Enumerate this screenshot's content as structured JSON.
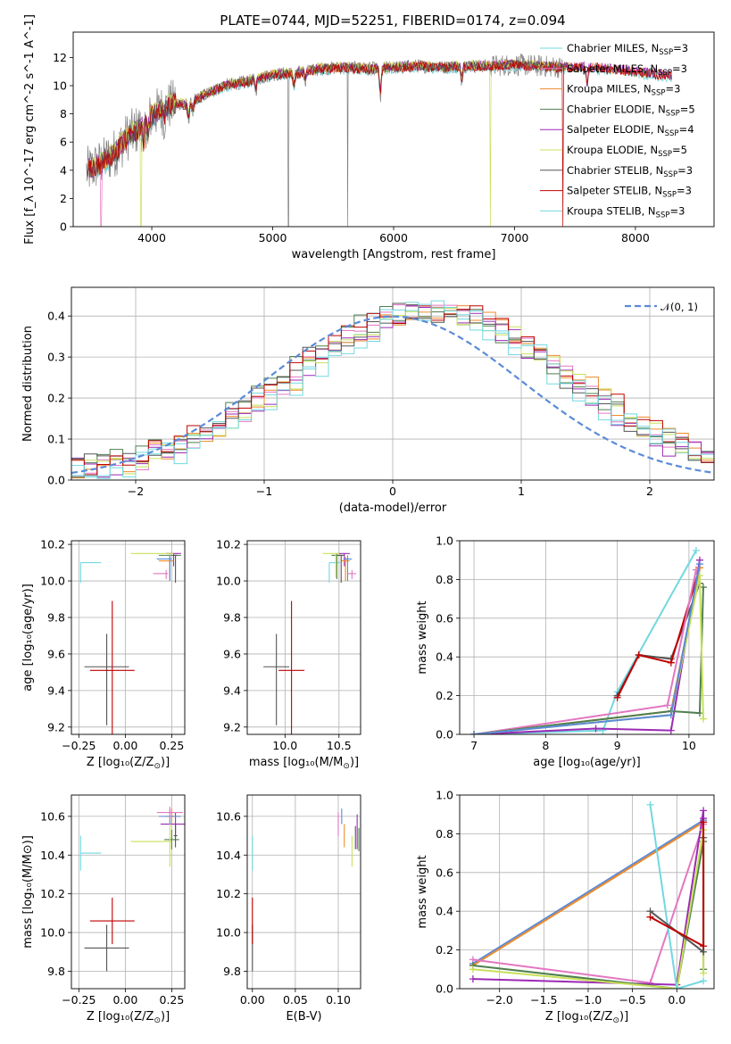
{
  "title": "PLATE=0744, MJD=52251, FIBERID=0174, z=0.094",
  "colors": {
    "gray": "#7f7f7f",
    "purple": "#9b2ab5",
    "orange": "#ee8a2a",
    "green": "#4f7f4f",
    "pink": "#e377c2",
    "yellowgreen": "#c8e05a",
    "darkgray": "#555555",
    "red": "#c00000",
    "cyan": "#72d8e0",
    "blue": "#5b8bd8",
    "grid": "#b0b0b0"
  },
  "chart_data": [
    {
      "id": "spectrum",
      "type": "line",
      "xlabel": "wavelength [Angstrom, rest frame]",
      "ylabel": "Flux [f_λ 10^-17 erg cm^-2 s^-1 A^-1]",
      "xlim": [
        3350,
        8650
      ],
      "ylim": [
        0,
        13.8
      ],
      "xticks": [
        "4000",
        "5000",
        "6000",
        "7000",
        "8000"
      ],
      "yticks": [
        "0",
        "2",
        "4",
        "6",
        "8",
        "10",
        "12"
      ],
      "grid": false,
      "legend_position": "top-right",
      "legend": [
        {
          "base": "Chabrier MILES, N",
          "sub": "SSP",
          "tail": "=3",
          "color": "cyan"
        },
        {
          "base": "Salpeter MILES, N",
          "sub": "SSP",
          "tail": "=3",
          "color": "pink"
        },
        {
          "base": "Kroupa MILES, N",
          "sub": "SSP",
          "tail": "=3",
          "color": "orange"
        },
        {
          "base": "Chabrier ELODIE, N",
          "sub": "SSP",
          "tail": "=5",
          "color": "green"
        },
        {
          "base": "Salpeter ELODIE, N",
          "sub": "SSP",
          "tail": "=4",
          "color": "purple"
        },
        {
          "base": "Kroupa ELODIE, N",
          "sub": "SSP",
          "tail": "=5",
          "color": "yellowgreen"
        },
        {
          "base": "Chabrier STELIB, N",
          "sub": "SSP",
          "tail": "=3",
          "color": "darkgray"
        },
        {
          "base": "Salpeter STELIB, N",
          "sub": "SSP",
          "tail": "=3",
          "color": "red"
        },
        {
          "base": "Kroupa STELIB, N",
          "sub": "SSP",
          "tail": "=3",
          "color": "cyan"
        }
      ],
      "continuum_wavelength": [
        3460,
        3600,
        3700,
        3800,
        3900,
        4000,
        4100,
        4200,
        4300,
        4400,
        4500,
        4600,
        4800,
        5000,
        5200,
        5400,
        5600,
        5800,
        6000,
        6200,
        6400,
        6600,
        6800,
        7000,
        7200,
        7400,
        7600,
        7800,
        8000,
        8200,
        8400
      ],
      "continuum_flux": [
        3.9,
        4.6,
        5.3,
        6.4,
        7.0,
        7.9,
        8.4,
        8.8,
        8.6,
        9.2,
        9.6,
        10.0,
        10.3,
        10.8,
        10.9,
        11.2,
        11.3,
        11.2,
        11.3,
        11.4,
        11.3,
        11.4,
        11.4,
        11.5,
        11.4,
        11.3,
        11.3,
        11.2,
        11.0,
        10.8,
        10.6
      ]
    },
    {
      "id": "residuals",
      "type": "histogram",
      "xlabel": "(data-model)/error",
      "ylabel": "Normed distribution",
      "xlim": [
        -2.5,
        2.5
      ],
      "ylim": [
        0,
        0.47
      ],
      "xticks": [
        "−2",
        "−1",
        "0",
        "1",
        "2"
      ],
      "yticks": [
        "0.0",
        "0.1",
        "0.2",
        "0.3",
        "0.4"
      ],
      "grid": true,
      "bin_width": 0.1,
      "legend_position": "top-right",
      "legend": {
        "label": "𝒩(0, 1)",
        "color": "blue"
      },
      "gaussian": {
        "mean": 0,
        "sigma": 1
      }
    },
    {
      "id": "age-vs-z",
      "type": "scatter",
      "xlabel_base": "Z [log₁₀(Z/Z",
      "xlabel_sun": "⊙",
      "xlabel_tail": ")]",
      "ylabel": "age  [log₁₀(age/yr)]",
      "xlim": [
        -0.29,
        0.32
      ],
      "ylim": [
        9.16,
        10.22
      ],
      "xticks": [
        "−0.25",
        "0.00",
        "0.25"
      ],
      "yticks": [
        "9.2",
        "9.4",
        "9.6",
        "9.8",
        "10.0",
        "10.2"
      ],
      "grid": true,
      "points": [
        {
          "x": -0.1,
          "y": 9.53,
          "xerr": 0.12,
          "yerr_lo": 0.32,
          "yerr_hi": 0.18,
          "color": "darkgray"
        },
        {
          "x": -0.07,
          "y": 9.51,
          "xerr": 0.12,
          "yerr_lo": 0.42,
          "yerr_hi": 0.38,
          "color": "red"
        },
        {
          "x": -0.24,
          "y": 10.1,
          "xerr_lo": 0.0,
          "xerr_hi": 0.11,
          "yerr_lo": 0.11,
          "yerr_hi": 0.0,
          "color": "cyan"
        },
        {
          "x": 0.24,
          "y": 10.14,
          "xerr": 0.06,
          "yerr_lo": 0.13,
          "yerr_hi": 0.01,
          "color": "green"
        },
        {
          "x": 0.26,
          "y": 10.15,
          "xerr": 0.04,
          "yerr_lo": 0.07,
          "yerr_hi": 0.0,
          "color": "purple"
        },
        {
          "x": 0.24,
          "y": 10.15,
          "xerr_lo": 0.21,
          "xerr_hi": 0.02,
          "yerr_lo": 0.13,
          "yerr_hi": 0.0,
          "color": "yellowgreen"
        },
        {
          "x": 0.24,
          "y": 10.11,
          "xerr_lo": 0.06,
          "xerr_hi": 0.02,
          "yerr_lo": 0.11,
          "yerr_hi": 0.02,
          "color": "orange"
        },
        {
          "x": 0.24,
          "y": 10.12,
          "xerr_lo": 0.07,
          "xerr_hi": 0.01,
          "yerr_lo": 0.12,
          "yerr_hi": 0.02,
          "color": "blue"
        },
        {
          "x": 0.22,
          "y": 10.04,
          "xerr_lo": 0.07,
          "xerr_hi": 0.01,
          "yerr_lo": 0.03,
          "yerr_hi": 0.02,
          "color": "pink"
        },
        {
          "x": 0.27,
          "y": 10.14,
          "xerr": 0.01,
          "yerr_lo": 0.15,
          "yerr_hi": 0.0,
          "color": "darkgray"
        }
      ]
    },
    {
      "id": "age-vs-mass",
      "type": "scatter",
      "xlabel_base": "mass [log₁₀(M/M",
      "xlabel_sun": "⊙",
      "xlabel_tail": ")]",
      "xlim": [
        9.65,
        10.7
      ],
      "ylim": [
        9.16,
        10.22
      ],
      "xticks": [
        "10.0",
        "10.5"
      ],
      "yticks": [
        "9.2",
        "9.4",
        "9.6",
        "9.8",
        "10.0",
        "10.2"
      ],
      "grid": true,
      "points": [
        {
          "x": 9.92,
          "y": 9.53,
          "xerr": 0.12,
          "yerr_lo": 0.32,
          "yerr_hi": 0.18,
          "color": "darkgray"
        },
        {
          "x": 10.06,
          "y": 9.51,
          "xerr": 0.12,
          "yerr_lo": 0.42,
          "yerr_hi": 0.38,
          "color": "red"
        },
        {
          "x": 10.41,
          "y": 10.1,
          "xerr_lo": 0.0,
          "xerr_hi": 0.1,
          "yerr_lo": 0.11,
          "yerr_hi": 0.0,
          "color": "cyan"
        },
        {
          "x": 10.48,
          "y": 10.14,
          "xerr": 0.05,
          "yerr_lo": 0.13,
          "yerr_hi": 0.01,
          "color": "green"
        },
        {
          "x": 10.55,
          "y": 10.15,
          "xerr": 0.05,
          "yerr_lo": 0.07,
          "yerr_hi": 0.0,
          "color": "purple"
        },
        {
          "x": 10.47,
          "y": 10.15,
          "xerr_lo": 0.12,
          "xerr_hi": 0.03,
          "yerr_lo": 0.13,
          "yerr_hi": 0.0,
          "color": "yellowgreen"
        },
        {
          "x": 10.56,
          "y": 10.11,
          "xerr": 0.04,
          "yerr_lo": 0.11,
          "yerr_hi": 0.02,
          "color": "orange"
        },
        {
          "x": 10.58,
          "y": 10.12,
          "xerr": 0.04,
          "yerr_lo": 0.12,
          "yerr_hi": 0.02,
          "color": "blue"
        },
        {
          "x": 10.62,
          "y": 10.04,
          "xerr": 0.04,
          "yerr_lo": 0.03,
          "yerr_hi": 0.02,
          "color": "pink"
        },
        {
          "x": 10.52,
          "y": 10.14,
          "xerr": 0.03,
          "yerr_lo": 0.15,
          "yerr_hi": 0.0,
          "color": "darkgray"
        }
      ]
    },
    {
      "id": "weight-vs-age",
      "type": "line",
      "xlabel": "age  [log₁₀(age/yr)]",
      "ylabel": "mass weight",
      "xlim": [
        6.8,
        10.35
      ],
      "ylim": [
        0,
        1.0
      ],
      "xticks": [
        "7",
        "8",
        "9",
        "10"
      ],
      "yticks": [
        "0.0",
        "0.2",
        "0.4",
        "0.6",
        "0.8",
        "1.0"
      ],
      "grid": true,
      "series": [
        {
          "color": "cyan",
          "x": [
            7.0,
            8.8,
            9.0,
            10.1
          ],
          "y": [
            0.0,
            0.02,
            0.22,
            0.95
          ]
        },
        {
          "color": "darkgray",
          "x": [
            9.0,
            9.3,
            9.75,
            10.15
          ],
          "y": [
            0.2,
            0.41,
            0.39,
            0.78
          ]
        },
        {
          "color": "red",
          "x": [
            9.0,
            9.3,
            9.75,
            10.15
          ],
          "y": [
            0.19,
            0.41,
            0.37,
            0.86
          ]
        },
        {
          "color": "purple",
          "x": [
            7.0,
            8.7,
            9.75,
            10.15
          ],
          "y": [
            0.0,
            0.03,
            0.02,
            0.9
          ]
        },
        {
          "color": "pink",
          "x": [
            7.0,
            9.7,
            10.1
          ],
          "y": [
            0.0,
            0.15,
            0.85
          ]
        },
        {
          "color": "orange",
          "x": [
            7.0,
            9.75,
            10.15
          ],
          "y": [
            0.0,
            0.12,
            0.86
          ]
        },
        {
          "color": "green",
          "x": [
            7.0,
            9.75,
            10.15,
            10.2
          ],
          "y": [
            0.0,
            0.12,
            0.11,
            0.76
          ]
        },
        {
          "color": "yellowgreen",
          "x": [
            7.0,
            9.75,
            10.15,
            10.2
          ],
          "y": [
            0.0,
            0.1,
            0.82,
            0.08
          ]
        },
        {
          "color": "blue",
          "x": [
            7.0,
            9.75,
            10.15
          ],
          "y": [
            0.0,
            0.1,
            0.88
          ]
        }
      ]
    },
    {
      "id": "mass-vs-z",
      "type": "scatter",
      "xlabel_base": "Z [log₁₀(Z/Z",
      "xlabel_sun": "⊙",
      "xlabel_tail": ")]",
      "ylabel": "mass [log₁₀(M/M⊙)]",
      "xlim": [
        -0.29,
        0.32
      ],
      "ylim": [
        9.71,
        10.71
      ],
      "xticks": [
        "−0.25",
        "0.00",
        "0.25"
      ],
      "yticks": [
        "9.8",
        "10.0",
        "10.2",
        "10.4",
        "10.6"
      ],
      "grid": true,
      "points": [
        {
          "x": -0.1,
          "y": 9.92,
          "xerr": 0.12,
          "yerr": 0.12,
          "color": "darkgray"
        },
        {
          "x": -0.07,
          "y": 10.06,
          "xerr": 0.12,
          "yerr": 0.12,
          "color": "red"
        },
        {
          "x": -0.24,
          "y": 10.41,
          "xerr_lo": 0.0,
          "xerr_hi": 0.11,
          "yerr": 0.09,
          "color": "cyan"
        },
        {
          "x": 0.25,
          "y": 10.48,
          "xerr": 0.04,
          "yerr": 0.05,
          "color": "green"
        },
        {
          "x": 0.27,
          "y": 10.56,
          "xerr": 0.08,
          "yerr": 0.06,
          "color": "purple"
        },
        {
          "x": 0.24,
          "y": 10.47,
          "xerr_lo": 0.21,
          "xerr_hi": 0.01,
          "yerr": 0.13,
          "color": "yellowgreen"
        },
        {
          "x": 0.25,
          "y": 10.6,
          "xerr": 0.04,
          "yerr": 0.04,
          "color": "orange"
        },
        {
          "x": 0.24,
          "y": 10.6,
          "xerr": 0.06,
          "yerr": 0.04,
          "color": "blue"
        },
        {
          "x": 0.24,
          "y": 10.62,
          "xerr": 0.07,
          "yerr": 0.03,
          "color": "pink"
        },
        {
          "x": 0.27,
          "y": 10.5,
          "xerr": 0.01,
          "yerr": 0.06,
          "color": "darkgray"
        }
      ]
    },
    {
      "id": "mass-vs-ebv",
      "type": "scatter",
      "xlabel": "E(B-V)",
      "xlim": [
        -0.006,
        0.126
      ],
      "ylim": [
        9.71,
        10.71
      ],
      "xticks": [
        "0.00",
        "0.05",
        "0.10"
      ],
      "yticks": [
        "9.8",
        "10.0",
        "10.2",
        "10.4",
        "10.6"
      ],
      "grid": true,
      "points": [
        {
          "x": 0.0,
          "y": 9.92,
          "yerr": 0.12,
          "color": "darkgray"
        },
        {
          "x": 0.0,
          "y": 10.06,
          "yerr": 0.12,
          "color": "red"
        },
        {
          "x": 0.0,
          "y": 10.41,
          "yerr": 0.09,
          "color": "cyan"
        },
        {
          "x": 0.1,
          "y": 10.56,
          "yerr": 0.06,
          "color": "pink"
        },
        {
          "x": 0.104,
          "y": 10.6,
          "yerr": 0.04,
          "color": "blue"
        },
        {
          "x": 0.107,
          "y": 10.5,
          "yerr": 0.06,
          "color": "orange"
        },
        {
          "x": 0.116,
          "y": 10.42,
          "yerr": 0.08,
          "color": "yellowgreen"
        },
        {
          "x": 0.12,
          "y": 10.49,
          "yerr": 0.06,
          "color": "darkgray"
        },
        {
          "x": 0.122,
          "y": 10.52,
          "yerr": 0.09,
          "color": "purple"
        },
        {
          "x": 0.124,
          "y": 10.48,
          "yerr": 0.06,
          "color": "green"
        }
      ]
    },
    {
      "id": "weight-vs-z",
      "type": "line",
      "xlabel_base": "Z [log₁₀(Z/Z",
      "xlabel_sun": "⊙",
      "xlabel_tail": ")]",
      "ylabel": "mass weight",
      "xlim": [
        -2.45,
        0.42
      ],
      "ylim": [
        0,
        1.0
      ],
      "xticks": [
        "−2.0",
        "−1.5",
        "−1.0",
        "−0.5",
        "0.0"
      ],
      "yticks": [
        "0.0",
        "0.2",
        "0.4",
        "0.6",
        "0.8",
        "1.0"
      ],
      "grid": true,
      "series": [
        {
          "color": "blue",
          "x": [
            -2.3,
            0.3
          ],
          "y": [
            0.13,
            0.87
          ]
        },
        {
          "color": "orange",
          "x": [
            -2.3,
            0.3
          ],
          "y": [
            0.12,
            0.86
          ]
        },
        {
          "color": "pink",
          "x": [
            -2.3,
            -0.3,
            0.3
          ],
          "y": [
            0.15,
            0.03,
            0.85
          ]
        },
        {
          "color": "purple",
          "x": [
            -2.3,
            0.0,
            0.3,
            0.3
          ],
          "y": [
            0.05,
            0.02,
            0.92,
            0.88
          ]
        },
        {
          "color": "green",
          "x": [
            -2.3,
            0.0,
            0.3,
            0.3
          ],
          "y": [
            0.12,
            0.0,
            0.76,
            0.1
          ]
        },
        {
          "color": "yellowgreen",
          "x": [
            -2.3,
            0.0,
            0.3,
            0.3
          ],
          "y": [
            0.1,
            0.0,
            0.82,
            0.08
          ]
        },
        {
          "color": "cyan",
          "x": [
            -0.3,
            0.0,
            0.3
          ],
          "y": [
            0.95,
            0.0,
            0.04
          ]
        },
        {
          "color": "darkgray",
          "x": [
            -0.3,
            0.3,
            0.3
          ],
          "y": [
            0.4,
            0.19,
            0.78
          ]
        },
        {
          "color": "red",
          "x": [
            -0.3,
            0.3,
            0.3
          ],
          "y": [
            0.37,
            0.22,
            0.86
          ]
        }
      ]
    }
  ]
}
